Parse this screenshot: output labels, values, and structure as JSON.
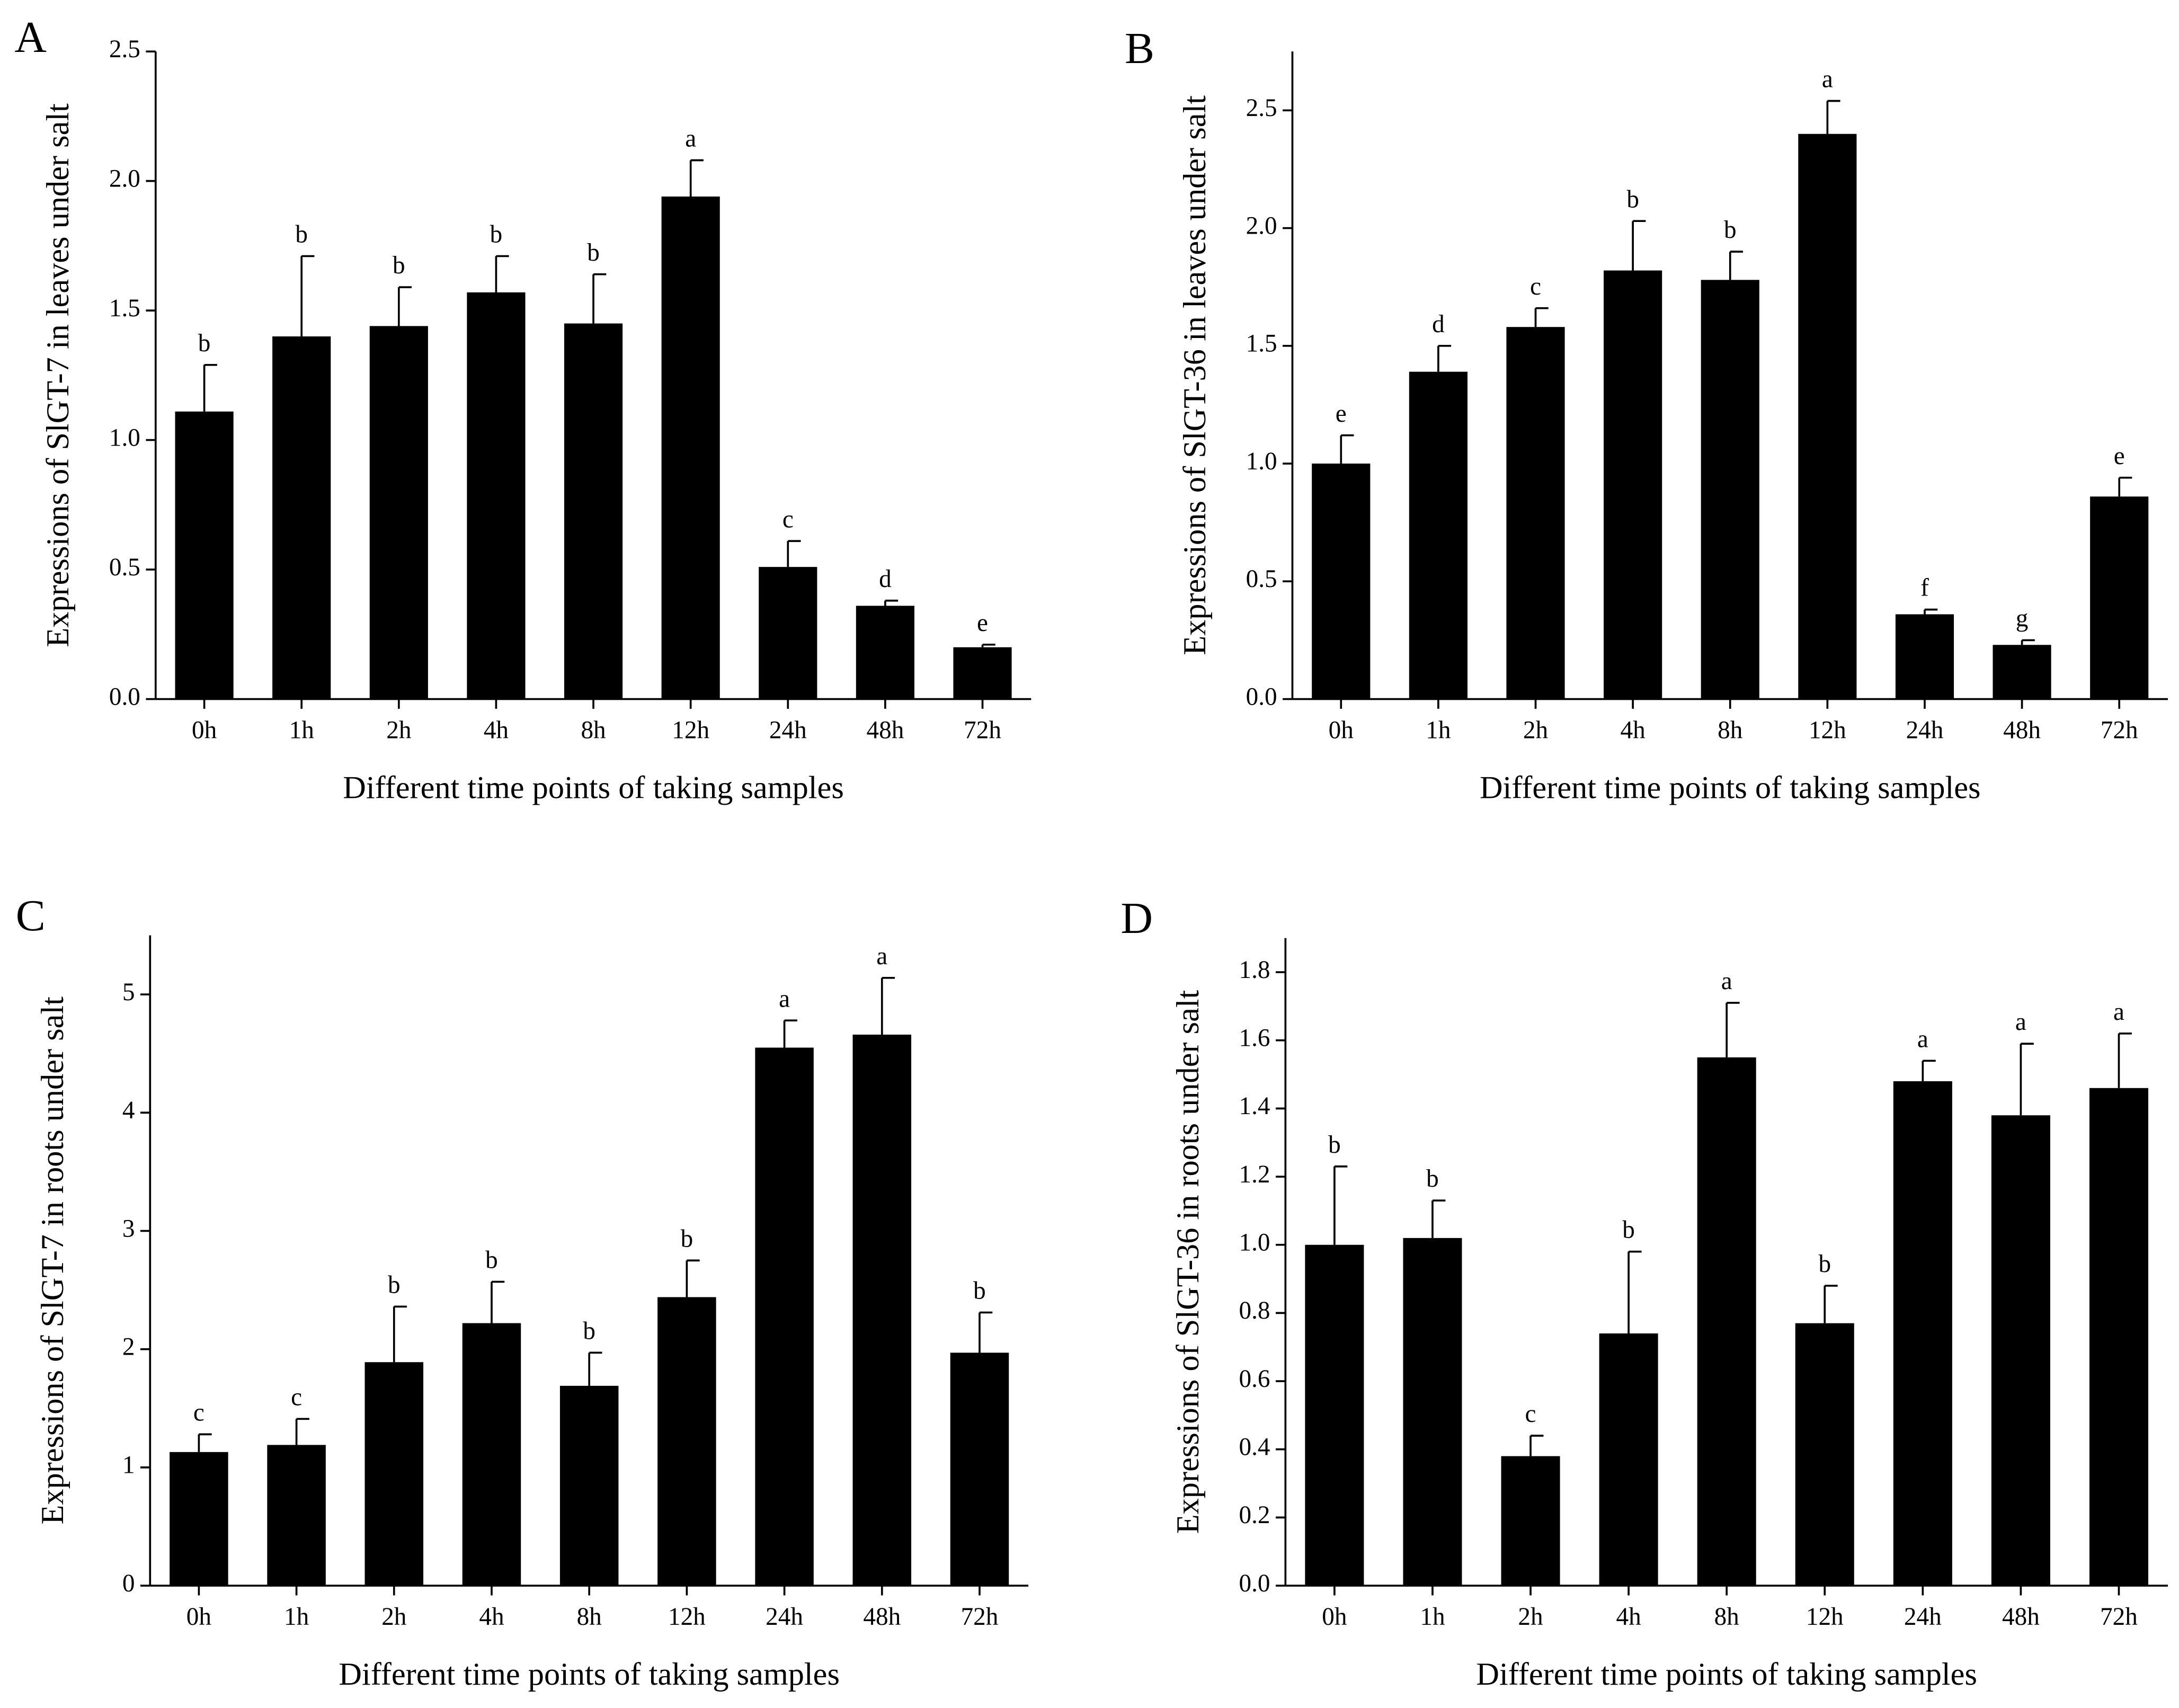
{
  "chart_data": [
    {
      "type": "bar",
      "panel": "A",
      "xlabel": "Different time points of taking samples",
      "ylabel": "Expressions of SlGT-7 in leaves under salt",
      "categories": [
        "0h",
        "1h",
        "2h",
        "4h",
        "8h",
        "12h",
        "24h",
        "48h",
        "72h"
      ],
      "values": [
        1.11,
        1.4,
        1.44,
        1.57,
        1.45,
        1.94,
        0.51,
        0.36,
        0.2
      ],
      "errors": [
        0.18,
        0.31,
        0.15,
        0.14,
        0.19,
        0.14,
        0.1,
        0.02,
        0.01
      ],
      "annotations": [
        "b",
        "b",
        "b",
        "b",
        "b",
        "a",
        "c",
        "d",
        "e"
      ],
      "color": "#000000",
      "ylim": [
        0,
        2.5
      ],
      "yticks": [
        {
          "value": 0,
          "label": "0.0"
        },
        0.5,
        {
          "value": 1,
          "label": "1.0"
        },
        1.5,
        {
          "value": 2,
          "label": "2.0"
        },
        2.5
      ]
    },
    {
      "type": "bar",
      "panel": "B",
      "xlabel": "Different time points of taking samples",
      "ylabel": "Expressions of SlGT-36 in leaves under salt",
      "categories": [
        "0h",
        "1h",
        "2h",
        "4h",
        "8h",
        "12h",
        "24h",
        "48h",
        "72h"
      ],
      "values": [
        1.0,
        1.39,
        1.58,
        1.82,
        1.78,
        2.4,
        0.36,
        0.23,
        0.86
      ],
      "errors": [
        0.12,
        0.11,
        0.08,
        0.21,
        0.12,
        0.14,
        0.02,
        0.02,
        0.08
      ],
      "annotations": [
        "e",
        "d",
        "c",
        "b",
        "b",
        "a",
        "f",
        "g",
        "e"
      ],
      "color": "#000000",
      "ylim": [
        0,
        2.75
      ],
      "yticks": [
        {
          "value": 0,
          "label": "0.0"
        },
        0.5,
        {
          "value": 1,
          "label": "1.0"
        },
        1.5,
        {
          "value": 2,
          "label": "2.0"
        },
        2.5
      ]
    },
    {
      "type": "bar",
      "panel": "C",
      "xlabel": "Different time points of taking samples",
      "ylabel": "Expressions of SlGT-7 in roots under salt",
      "categories": [
        "0h",
        "1h",
        "2h",
        "4h",
        "8h",
        "12h",
        "24h",
        "48h",
        "72h"
      ],
      "values": [
        1.13,
        1.19,
        1.89,
        2.22,
        1.69,
        2.44,
        4.55,
        4.66,
        1.97
      ],
      "errors": [
        0.15,
        0.22,
        0.47,
        0.35,
        0.28,
        0.31,
        0.23,
        0.48,
        0.34
      ],
      "annotations": [
        "c",
        "c",
        "b",
        "b",
        "b",
        "b",
        "a",
        "a",
        "b"
      ],
      "color": "#000000",
      "ylim": [
        0,
        5.5
      ],
      "yticks": [
        0,
        1,
        2,
        3,
        4,
        5
      ]
    },
    {
      "type": "bar",
      "panel": "D",
      "xlabel": "Different time points of taking samples",
      "ylabel": "Expressions of SlGT-36 in roots under salt",
      "categories": [
        "0h",
        "1h",
        "2h",
        "4h",
        "8h",
        "12h",
        "24h",
        "48h",
        "72h"
      ],
      "values": [
        1.0,
        1.02,
        0.38,
        0.74,
        1.55,
        0.77,
        1.48,
        1.38,
        1.46
      ],
      "errors": [
        0.23,
        0.11,
        0.06,
        0.24,
        0.16,
        0.11,
        0.06,
        0.21,
        0.16
      ],
      "annotations": [
        "b",
        "b",
        "c",
        "b",
        "a",
        "b",
        "a",
        "a",
        "a"
      ],
      "color": "#000000",
      "ylim": [
        0,
        1.9
      ],
      "yticks": [
        {
          "value": 0,
          "label": "0.0"
        },
        0.2,
        0.4,
        0.6,
        0.8,
        {
          "value": 1,
          "label": "1.0"
        },
        1.2,
        1.4,
        1.6,
        1.8
      ]
    }
  ]
}
